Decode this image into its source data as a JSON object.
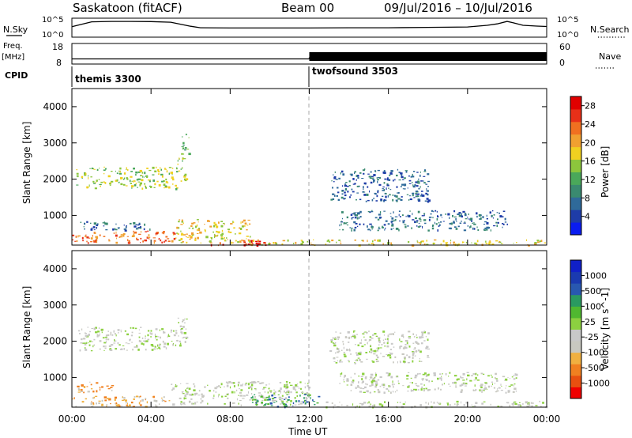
{
  "header": {
    "station": "Saskatoon  (fitACF)",
    "beam": "Beam 00",
    "dates": "09/Jul/2016 – 10/Jul/2016"
  },
  "top_panels": {
    "nsky_label": "N.Sky",
    "nsearch_label": "N.Search",
    "count_ticks": [
      "10^5",
      "10^0"
    ],
    "freq_label": [
      "Freq.",
      "[MHz]"
    ],
    "freq_ticks": [
      "18",
      "8"
    ],
    "nave_label": "Nave",
    "nave_ticks": [
      "60",
      "0"
    ],
    "cpid_label": "CPID",
    "cpid_modes": [
      {
        "name": "themis 3300",
        "start_hour": 0
      },
      {
        "name": "twofsound 3503",
        "start_hour": 12
      }
    ]
  },
  "time_axis": {
    "title": "Time UT",
    "ticks": [
      "00:00",
      "04:00",
      "08:00",
      "12:00",
      "16:00",
      "20:00",
      "00:00"
    ]
  },
  "range_axis": {
    "title": "Slant Range [km]",
    "ticks": [
      "1000",
      "2000",
      "3000",
      "4000"
    ]
  },
  "colors": {
    "power": [
      "#0a1cf0",
      "#1e3ca8",
      "#2f6a9a",
      "#3a8a70",
      "#4aa85a",
      "#8cc63c",
      "#f0d020",
      "#f0a030",
      "#f07020",
      "#e83018",
      "#e00000"
    ],
    "velocity": [
      "#f00000",
      "#e85010",
      "#f08020",
      "#f0b040",
      "#c8c8c0",
      "#c8c8c8",
      "#8cd040",
      "#50b830",
      "#2a9a60",
      "#2858b0",
      "#1a3ab0",
      "#1020c8"
    ]
  },
  "chart_data": [
    {
      "type": "line",
      "title": "N.Sky / N.Search",
      "x_unit": "hour UT",
      "xlim": [
        0,
        24
      ],
      "y_scale": "log",
      "ylim": [
        1,
        100000
      ],
      "series": [
        {
          "values_x": [
            0,
            1,
            2,
            3,
            4,
            5,
            6,
            6.5,
            8,
            10,
            12,
            14,
            16,
            18,
            20,
            21,
            21.5,
            22,
            22.3,
            22.8,
            23.5,
            24
          ],
          "values_y": [
            600,
            15000,
            20000,
            20000,
            18000,
            12000,
            800,
            300,
            250,
            250,
            250,
            300,
            300,
            400,
            500,
            1500,
            4000,
            20000,
            8000,
            1500,
            900,
            700
          ]
        }
      ]
    },
    {
      "type": "line",
      "title": "Freq. / Nave",
      "x_unit": "hour UT",
      "xlim": [
        0,
        24
      ],
      "ylim": [
        8,
        18
      ],
      "series": [
        {
          "values_x": [
            0,
            12,
            12,
            24
          ],
          "values_y": [
            10.5,
            10.5,
            11.0,
            11.0
          ]
        }
      ]
    },
    {
      "type": "heatmap",
      "title": "Power [dB]",
      "x_unit": "hour UT",
      "xlim": [
        0,
        24
      ],
      "ylim": [
        180,
        4500
      ],
      "colorbar": {
        "label": "Power [dB]",
        "ticks": [
          4,
          8,
          12,
          16,
          20,
          24,
          28
        ],
        "range": [
          0,
          30
        ]
      },
      "regions": [
        {
          "t0": 0.2,
          "t1": 5.3,
          "r0": 1750,
          "r1": 2350,
          "value": 14
        },
        {
          "t0": 5.3,
          "t1": 5.8,
          "r0": 1900,
          "r1": 2600,
          "value": 14
        },
        {
          "t0": 5.5,
          "t1": 5.9,
          "r0": 2600,
          "r1": 3300,
          "value": 12
        },
        {
          "t0": 0,
          "t1": 5.2,
          "r0": 250,
          "r1": 580,
          "value": 24
        },
        {
          "t0": 0.3,
          "t1": 4.0,
          "r0": 600,
          "r1": 850,
          "value": 7
        },
        {
          "t0": 5.2,
          "t1": 9.0,
          "r0": 250,
          "r1": 900,
          "value": 18
        },
        {
          "t0": 7.0,
          "t1": 10.0,
          "r0": 190,
          "r1": 350,
          "value": 26
        },
        {
          "t0": 9.0,
          "t1": 24,
          "r0": 190,
          "r1": 340,
          "value": 18
        },
        {
          "t0": 13.5,
          "t1": 22.0,
          "r0": 600,
          "r1": 1150,
          "value": 6
        },
        {
          "t0": 13.0,
          "t1": 18.0,
          "r0": 1400,
          "r1": 2300,
          "value": 5
        }
      ]
    },
    {
      "type": "heatmap",
      "title": "Velocity [m s^-1]",
      "x_unit": "hour UT",
      "xlim": [
        0,
        24
      ],
      "ylim": [
        180,
        4500
      ],
      "colorbar": {
        "label": "Velocity [m s^-1]",
        "ticks": [
          1000,
          500,
          100,
          25,
          -25,
          -100,
          -500,
          -1000
        ]
      },
      "regions": [
        {
          "t0": 0.3,
          "t1": 5.3,
          "r0": 1750,
          "r1": 2400,
          "value": 0
        },
        {
          "t0": 5.3,
          "t1": 5.9,
          "r0": 1900,
          "r1": 2700,
          "value": 0
        },
        {
          "t0": 0,
          "t1": 5.0,
          "r0": 200,
          "r1": 500,
          "value": -150
        },
        {
          "t0": 0.2,
          "t1": 2.0,
          "r0": 600,
          "r1": 900,
          "value": -200
        },
        {
          "t0": 5.0,
          "t1": 12.0,
          "r0": 250,
          "r1": 900,
          "value": 0
        },
        {
          "t0": 9.0,
          "t1": 12.5,
          "r0": 200,
          "r1": 550,
          "value": 150
        },
        {
          "t0": 12.5,
          "t1": 24,
          "r0": 200,
          "r1": 360,
          "value": 0
        },
        {
          "t0": 13.5,
          "t1": 22.5,
          "r0": 600,
          "r1": 1150,
          "value": 0
        },
        {
          "t0": 13.0,
          "t1": 18.0,
          "r0": 1400,
          "r1": 2300,
          "value": 0
        }
      ]
    }
  ]
}
